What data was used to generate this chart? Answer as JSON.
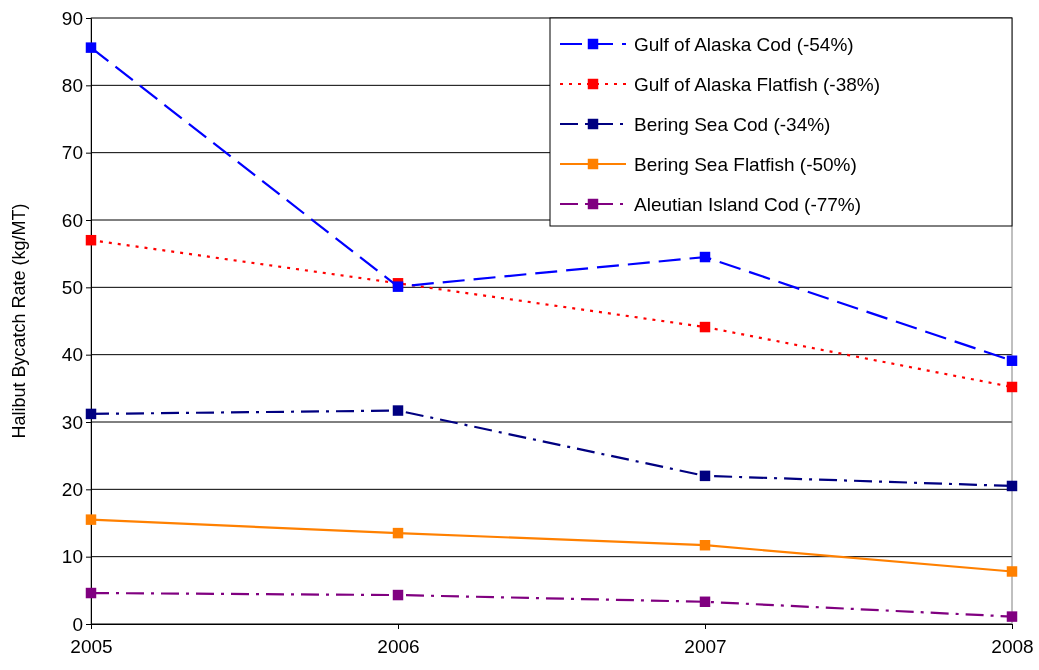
{
  "chart_data": {
    "type": "line",
    "ylabel": "Halibut Bycatch Rate (kg/MT)",
    "x": [
      2005,
      2006,
      2007,
      2008
    ],
    "xlim": [
      2005,
      2008
    ],
    "xticks": [
      2005,
      2006,
      2007,
      2008
    ],
    "ylim": [
      0,
      90
    ],
    "yticks": [
      0,
      10,
      20,
      30,
      40,
      50,
      60,
      70,
      80,
      90
    ],
    "grid": "y",
    "legend": "top right",
    "marker": "square",
    "series": [
      {
        "name": "Gulf of Alaska Cod (-54%)",
        "color": "#0000ff",
        "line_style": "dashed",
        "values": [
          85.6,
          50.1,
          54.5,
          39.1
        ]
      },
      {
        "name": "Gulf of Alaska Flatfish (-38%)",
        "color": "#ff0000",
        "line_style": "dotted",
        "values": [
          57.0,
          50.6,
          44.1,
          35.2
        ]
      },
      {
        "name": "Bering Sea Cod (-34%)",
        "color": "#000080",
        "line_style": "dashdot",
        "values": [
          31.2,
          31.7,
          22.0,
          20.5
        ]
      },
      {
        "name": "Bering Sea Flatfish (-50%)",
        "color": "#ff8000",
        "line_style": "solid",
        "values": [
          15.5,
          13.5,
          11.7,
          7.8
        ]
      },
      {
        "name": "Aleutian Island Cod (-77%)",
        "color": "#800080",
        "line_style": "dashdot",
        "values": [
          4.6,
          4.3,
          3.3,
          1.1
        ]
      }
    ]
  }
}
